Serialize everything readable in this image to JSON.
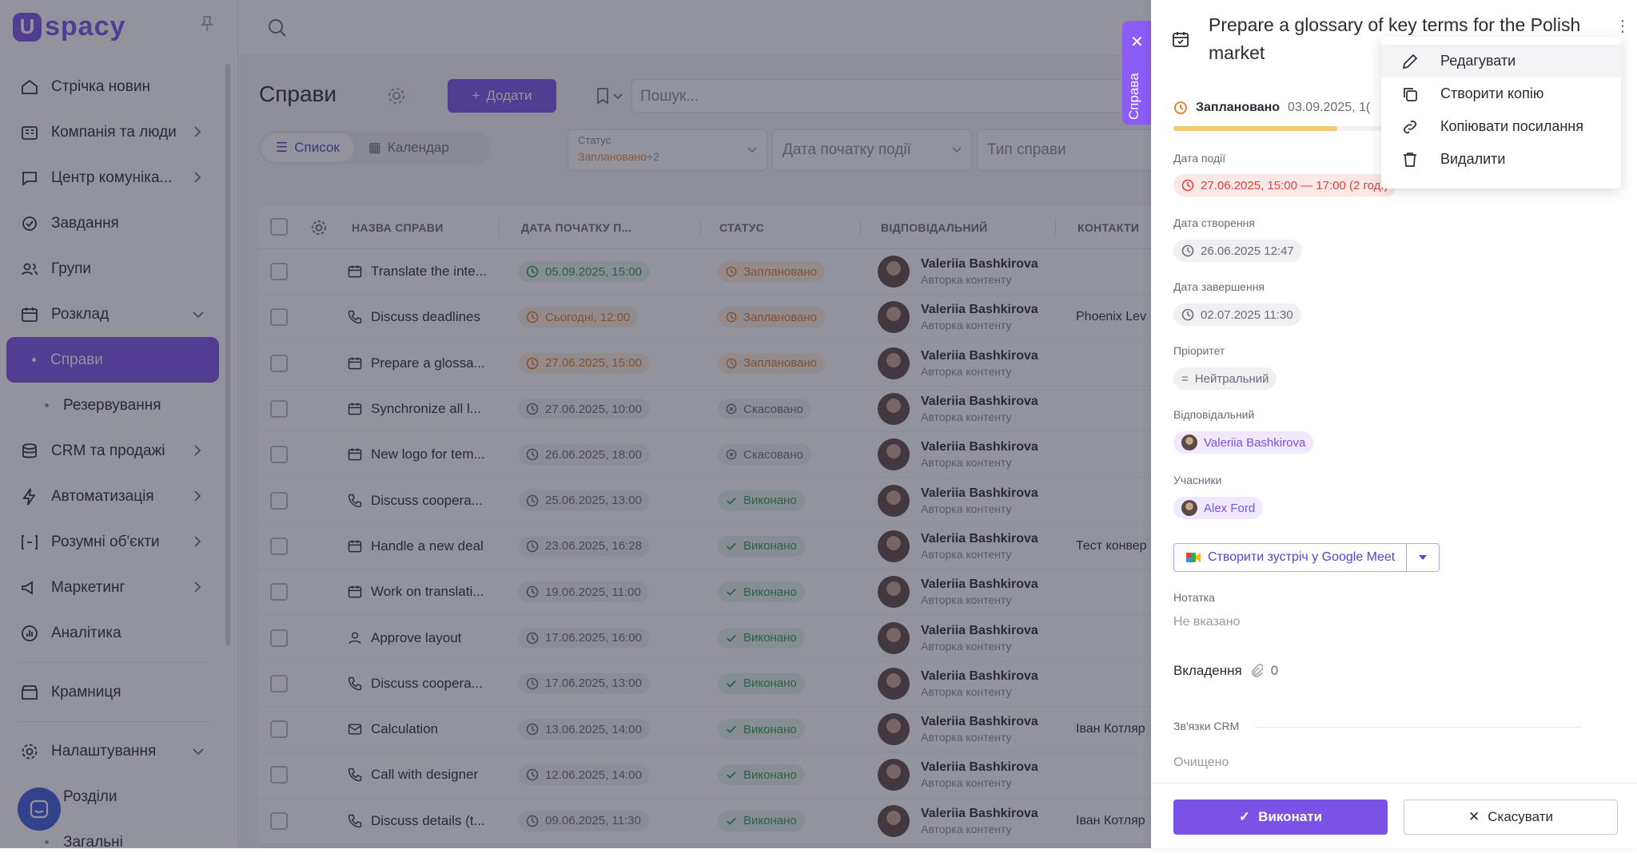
{
  "brand": {
    "logo_text": "spacy"
  },
  "sidebar": {
    "items": [
      {
        "label": "Стрічка новин",
        "icon": "news-icon"
      },
      {
        "label": "Компанія та люди",
        "icon": "company-icon",
        "chevron": "right"
      },
      {
        "label": "Центр комуніка...",
        "icon": "chat-icon",
        "chevron": "right"
      },
      {
        "label": "Завдання",
        "icon": "task-icon"
      },
      {
        "label": "Групи",
        "icon": "groups-icon"
      },
      {
        "label": "Розклад",
        "icon": "calendar-icon",
        "chevron": "down"
      },
      {
        "label": "Справи",
        "sub": true,
        "active": true
      },
      {
        "label": "Резервування",
        "sub": true
      },
      {
        "label": "CRM та продажі",
        "icon": "crm-icon",
        "chevron": "right"
      },
      {
        "label": "Автоматизація",
        "icon": "bolt-icon",
        "chevron": "right"
      },
      {
        "label": "Розумні об'єкти",
        "icon": "smart-icon",
        "chevron": "right"
      },
      {
        "label": "Маркетинг",
        "icon": "megaphone-icon",
        "chevron": "right"
      },
      {
        "label": "Аналітика",
        "icon": "analytics-icon"
      },
      {
        "label": "Крамниця",
        "icon": "store-icon"
      },
      {
        "label": "Налаштування",
        "icon": "gear-icon",
        "chevron": "down"
      },
      {
        "label": "Розділи",
        "sub": true
      },
      {
        "label": "Загальні",
        "sub": true
      }
    ]
  },
  "toolbar": {
    "title": "Справи",
    "add_label": "Додати",
    "search_placeholder": "Пошук...",
    "view_list": "Список",
    "view_calendar": "Календар"
  },
  "filters": {
    "status_label": "Статус",
    "status_value": "Заплановано",
    "status_more": "+2",
    "date_label": "Дата початку події",
    "type_label": "Тип справи"
  },
  "table": {
    "headers": [
      "НАЗВА СПРАВИ",
      "ДАТА ПОЧАТКУ П...",
      "СТАТУС",
      "ВІДПОВІДАЛЬНИЙ",
      "КОНТАКТИ"
    ],
    "rows": [
      {
        "name": "Translate the inte...",
        "icon": "calendar-icon",
        "date": "05.09.2025, 15:00",
        "date_color": "green",
        "status": "Заплановано",
        "status_color": "orange",
        "resp": "Valeriia Bashkirova",
        "role": "Авторка контенту",
        "contact": ""
      },
      {
        "name": "Discuss deadlines",
        "icon": "phone-icon",
        "date": "Сьогодні, 12:00",
        "date_color": "orange",
        "status": "Заплановано",
        "status_color": "orange",
        "resp": "Valeriia Bashkirova",
        "role": "Авторка контенту",
        "contact": "Phoenix Lev"
      },
      {
        "name": "Prepare a glossa...",
        "icon": "calendar-icon",
        "date": "27.06.2025, 15:00",
        "date_color": "orange",
        "status": "Заплановано",
        "status_color": "orange",
        "resp": "Valeriia Bashkirova",
        "role": "Авторка контенту",
        "contact": ""
      },
      {
        "name": "Synchronize all l...",
        "icon": "calendar-icon",
        "date": "27.06.2025, 10:00",
        "date_color": "grey",
        "status": "Скасовано",
        "status_color": "grey",
        "resp": "Valeriia Bashkirova",
        "role": "Авторка контенту",
        "contact": ""
      },
      {
        "name": "New logo for tem...",
        "icon": "calendar-icon",
        "date": "26.06.2025, 18:00",
        "date_color": "grey",
        "status": "Скасовано",
        "status_color": "grey",
        "resp": "Valeriia Bashkirova",
        "role": "Авторка контенту",
        "contact": ""
      },
      {
        "name": "Discuss coopera...",
        "icon": "phone-icon",
        "date": "25.06.2025, 13:00",
        "date_color": "grey",
        "status": "Виконано",
        "status_color": "green",
        "resp": "Valeriia Bashkirova",
        "role": "Авторка контенту",
        "contact": ""
      },
      {
        "name": "Handle a new deal",
        "icon": "calendar-icon",
        "date": "23.06.2025, 16:28",
        "date_color": "grey",
        "status": "Виконано",
        "status_color": "green",
        "resp": "Valeriia Bashkirova",
        "role": "Авторка контенту",
        "contact": "Тест конвер"
      },
      {
        "name": "Work on translati...",
        "icon": "calendar-icon",
        "date": "19.06.2025, 11:00",
        "date_color": "grey",
        "status": "Виконано",
        "status_color": "green",
        "resp": "Valeriia Bashkirova",
        "role": "Авторка контенту",
        "contact": ""
      },
      {
        "name": "Approve layout",
        "icon": "user-icon",
        "date": "17.06.2025, 16:00",
        "date_color": "grey",
        "status": "Виконано",
        "status_color": "green",
        "resp": "Valeriia Bashkirova",
        "role": "Авторка контенту",
        "contact": ""
      },
      {
        "name": "Discuss coopera...",
        "icon": "phone-icon",
        "date": "17.06.2025, 13:00",
        "date_color": "grey",
        "status": "Виконано",
        "status_color": "green",
        "resp": "Valeriia Bashkirova",
        "role": "Авторка контенту",
        "contact": ""
      },
      {
        "name": "Calculation",
        "icon": "mail-icon",
        "date": "13.06.2025, 14:00",
        "date_color": "grey",
        "status": "Виконано",
        "status_color": "green",
        "resp": "Valeriia Bashkirova",
        "role": "Авторка контенту",
        "contact": "Іван Котляр"
      },
      {
        "name": "Call with designer",
        "icon": "phone-icon",
        "date": "12.06.2025, 14:00",
        "date_color": "grey",
        "status": "Виконано",
        "status_color": "green",
        "resp": "Valeriia Bashkirova",
        "role": "Авторка контенту",
        "contact": ""
      },
      {
        "name": "Discuss details (t...",
        "icon": "phone-icon",
        "date": "09.06.2025, 11:30",
        "date_color": "grey",
        "status": "Виконано",
        "status_color": "green",
        "resp": "Valeriia Bashkirova",
        "role": "Авторка контенту",
        "contact": "Іван Котляр"
      }
    ]
  },
  "side_tab": {
    "label": "Справа"
  },
  "panel": {
    "title": "Prepare a glossary of key terms for the Polish market",
    "status": "Заплановано",
    "status_date": "03.09.2025, 1(",
    "progress": 0.38,
    "event_date_label": "Дата події",
    "event_date": "27.06.2025, 15:00 — 17:00 (2 год.)",
    "created_label": "Дата створення",
    "created": "26.06.2025 12:47",
    "finished_label": "Дата завершення",
    "finished": "02.07.2025 11:30",
    "priority_label": "Пріоритет",
    "priority": "Нейтральний",
    "resp_label": "Відповідальний",
    "resp": "Valeriia Bashkirova",
    "participants_label": "Учасники",
    "participant": "Alex Ford",
    "meet_label": "Створити зустріч у Google Meet",
    "note_label": "Нотатка",
    "note_value": "Не вказано",
    "attach_label": "Вкладення",
    "attach_count": "0",
    "crm_label": "Зв'язки CRM",
    "crm_value": "Очищено",
    "done_label": "Виконати",
    "cancel_label": "Скасувати"
  },
  "menu": {
    "items": [
      {
        "label": "Редагувати",
        "icon": "pencil-icon"
      },
      {
        "label": "Створити копію",
        "icon": "copy-icon"
      },
      {
        "label": "Копіювати посилання",
        "icon": "link-icon"
      },
      {
        "label": "Видалити",
        "icon": "trash-icon"
      }
    ]
  },
  "colors": {
    "accent": "#7a52e6",
    "green": "#2a9d4b",
    "orange": "#e07a25",
    "red": "#e0413a"
  }
}
